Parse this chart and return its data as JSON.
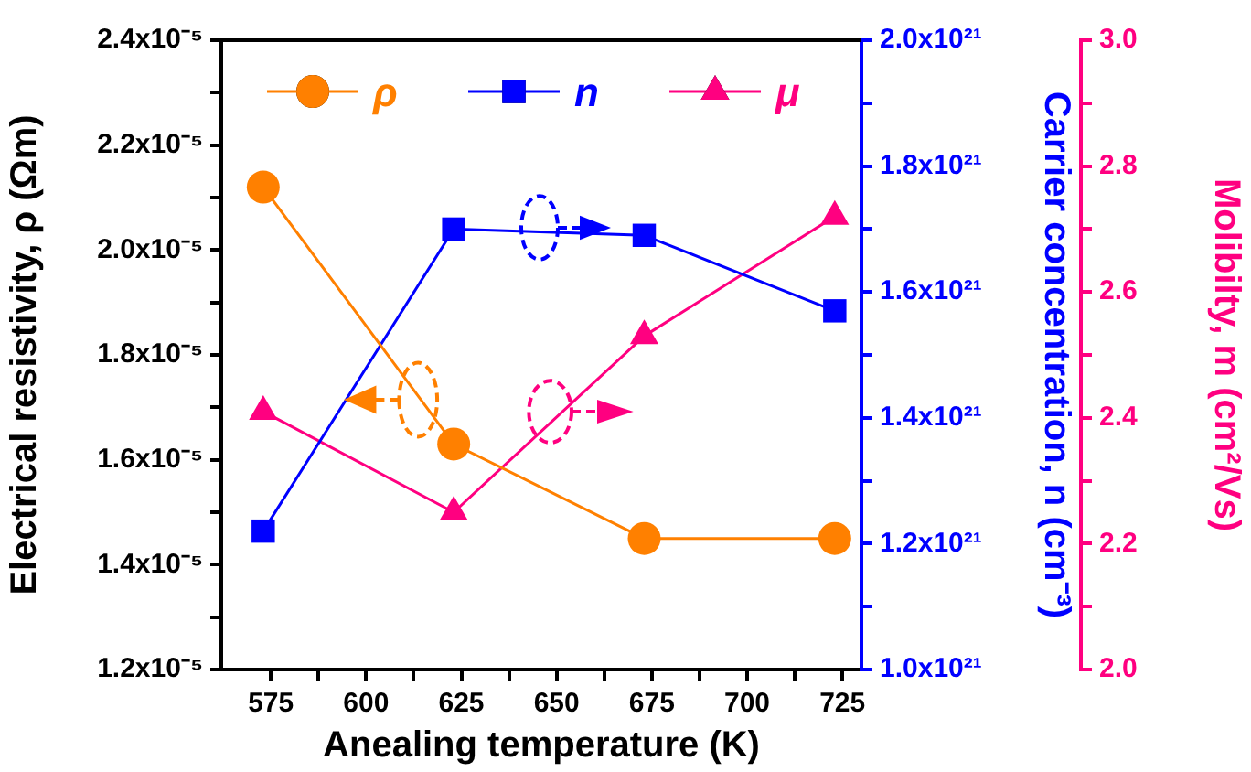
{
  "chart_data": {
    "type": "line",
    "xlabel": "Anealing temperature (K)",
    "ylabel": "Electrical resistivity, ρ (Ωm)",
    "y2label": "Carrier concentration, n (cm⁻³)",
    "y3label": "Molibilty, m (cm²/Vs)",
    "legend": "top",
    "x": [
      573,
      623,
      673,
      723
    ],
    "series": [
      {
        "name": "ρ",
        "color": "#ff8000",
        "marker": "circle",
        "axis": "y",
        "values": [
          2.12e-05,
          1.63e-05,
          1.45e-05,
          1.45e-05
        ]
      },
      {
        "name": "n",
        "color": "#0000ff",
        "marker": "square",
        "axis": "y2",
        "values": [
          1.22e+21,
          1.7e+21,
          1.69e+21,
          1.57e+21
        ]
      },
      {
        "name": "μ",
        "color": "#ff0080",
        "marker": "triangle",
        "axis": "y3",
        "values": [
          2.41,
          2.25,
          2.53,
          2.72
        ]
      }
    ],
    "xlim": [
      562,
      730
    ],
    "xticks": [
      575,
      {
        "value": 587.5,
        "label": null
      },
      600,
      {
        "value": 612.5,
        "label": null
      },
      625,
      {
        "value": 637.5,
        "label": null
      },
      650,
      {
        "value": 662.5,
        "label": null
      },
      675,
      {
        "value": 687.5,
        "label": null
      },
      700,
      {
        "value": 712.5,
        "label": null
      },
      725
    ],
    "ylim": [
      1.2e-05,
      2.4e-05
    ],
    "yticks": [
      {
        "value": 1.2e-05,
        "label": "1.2x10⁻⁵"
      },
      {
        "value": 1.3e-05,
        "label": null
      },
      {
        "value": 1.4e-05,
        "label": "1.4x10⁻⁵"
      },
      {
        "value": 1.5e-05,
        "label": null
      },
      {
        "value": 1.6e-05,
        "label": "1.6x10⁻⁵"
      },
      {
        "value": 1.7e-05,
        "label": null
      },
      {
        "value": 1.8e-05,
        "label": "1.8x10⁻⁵"
      },
      {
        "value": 1.9e-05,
        "label": null
      },
      {
        "value": 2e-05,
        "label": "2.0x10⁻⁵"
      },
      {
        "value": 2.1e-05,
        "label": null
      },
      {
        "value": 2.2e-05,
        "label": "2.2x10⁻⁵"
      },
      {
        "value": 2.3e-05,
        "label": null
      },
      {
        "value": 2.4e-05,
        "label": "2.4x10⁻⁵"
      }
    ],
    "y2lim": [
      1e+21,
      2e+21
    ],
    "y2ticks": [
      {
        "value": 1e+21,
        "label": "1.0x10²¹"
      },
      {
        "value": 1.1e+21,
        "label": null
      },
      {
        "value": 1.2e+21,
        "label": "1.2x10²¹"
      },
      {
        "value": 1.3e+21,
        "label": null
      },
      {
        "value": 1.4e+21,
        "label": "1.4x10²¹"
      },
      {
        "value": 1.5e+21,
        "label": null
      },
      {
        "value": 1.6e+21,
        "label": "1.6x10²¹"
      },
      {
        "value": 1.7e+21,
        "label": null
      },
      {
        "value": 1.8e+21,
        "label": "1.8x10²¹"
      },
      {
        "value": 1.9e+21,
        "label": null
      },
      {
        "value": 2e+21,
        "label": "2.0x10²¹"
      }
    ],
    "y3lim": [
      2.0,
      3.0
    ],
    "y3ticks": [
      {
        "value": 2.0,
        "label": "2.0"
      },
      {
        "value": 2.1,
        "label": null
      },
      {
        "value": 2.2,
        "label": "2.2"
      },
      {
        "value": 2.3,
        "label": null
      },
      {
        "value": 2.4,
        "label": "2.4"
      },
      {
        "value": 2.5,
        "label": null
      },
      {
        "value": 2.6,
        "label": "2.6"
      },
      {
        "value": 2.7,
        "label": null
      },
      {
        "value": 2.8,
        "label": "2.8"
      },
      {
        "value": 2.9,
        "label": null
      },
      {
        "value": 3.0,
        "label": "3.0"
      }
    ]
  }
}
